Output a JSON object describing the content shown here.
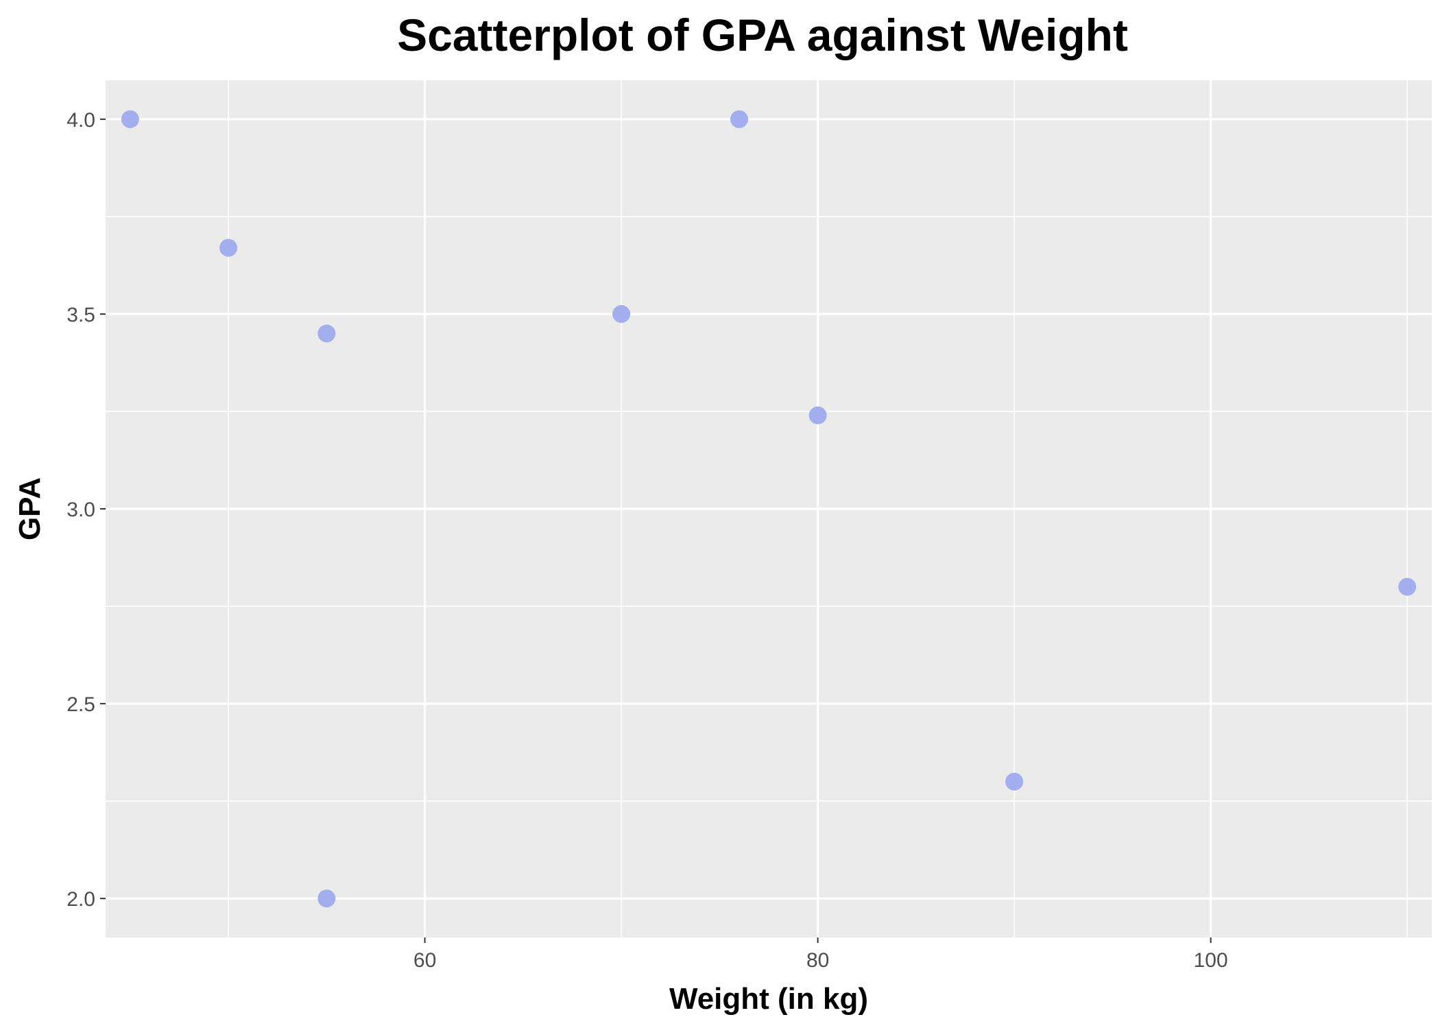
{
  "chart_data": {
    "type": "scatter",
    "title": "Scatterplot of GPA against Weight",
    "xlabel": "Weight (in kg)",
    "ylabel": "GPA",
    "xlim": [
      43.75,
      111.25
    ],
    "ylim": [
      1.9,
      4.1
    ],
    "x_ticks": [
      {
        "value": 60,
        "label": "60"
      },
      {
        "value": 80,
        "label": "80"
      },
      {
        "value": 100,
        "label": "100"
      }
    ],
    "x_minor": [
      50,
      70,
      90,
      110
    ],
    "y_ticks": [
      {
        "value": 2.0,
        "label": "2.0"
      },
      {
        "value": 2.5,
        "label": "2.5"
      },
      {
        "value": 3.0,
        "label": "3.0"
      },
      {
        "value": 3.5,
        "label": "3.5"
      },
      {
        "value": 4.0,
        "label": "4.0"
      }
    ],
    "y_minor": [
      2.25,
      2.75,
      3.25,
      3.75
    ],
    "grid": true,
    "colors": {
      "panel_background": "#ebebeb",
      "grid_line": "#ffffff",
      "point": "#a3aeef"
    },
    "series": [
      {
        "points": [
          {
            "x": 45,
            "y": 4.0
          },
          {
            "x": 50,
            "y": 3.67
          },
          {
            "x": 55,
            "y": 3.45
          },
          {
            "x": 55,
            "y": 2.0
          },
          {
            "x": 70,
            "y": 3.5
          },
          {
            "x": 76,
            "y": 4.0
          },
          {
            "x": 80,
            "y": 3.24
          },
          {
            "x": 90,
            "y": 2.3
          },
          {
            "x": 110,
            "y": 2.8
          }
        ]
      }
    ]
  }
}
